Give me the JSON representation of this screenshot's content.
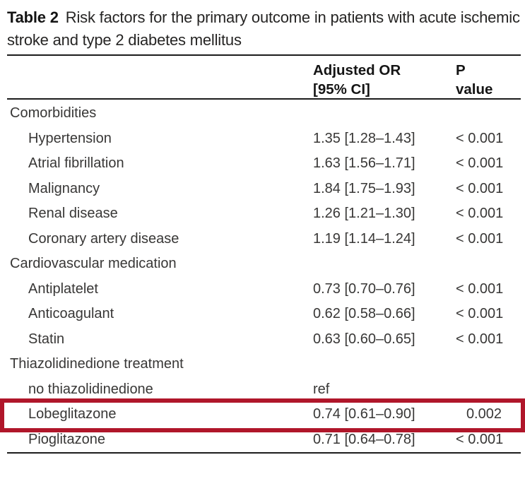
{
  "title": {
    "label": "Table 2",
    "caption": "Risk factors for the primary outcome in patients with acute ischemic stroke and type 2 diabetes mellitus"
  },
  "columns": {
    "or_line1": "Adjusted OR",
    "or_line2": "[95% CI]",
    "p_line1": "P",
    "p_line2": "value"
  },
  "rows": [
    {
      "label": "Comorbidities",
      "type": "section",
      "or": "",
      "p": "",
      "highlighted": false
    },
    {
      "label": "Hypertension",
      "type": "item",
      "or": "1.35 [1.28–1.43]",
      "p": "< 0.001",
      "highlighted": false
    },
    {
      "label": "Atrial fibrillation",
      "type": "item",
      "or": "1.63 [1.56–1.71]",
      "p": "< 0.001",
      "highlighted": false
    },
    {
      "label": "Malignancy",
      "type": "item",
      "or": "1.84 [1.75–1.93]",
      "p": "< 0.001",
      "highlighted": false
    },
    {
      "label": "Renal disease",
      "type": "item",
      "or": "1.26 [1.21–1.30]",
      "p": "< 0.001",
      "highlighted": false
    },
    {
      "label": "Coronary artery disease",
      "type": "item",
      "or": "1.19 [1.14–1.24]",
      "p": "< 0.001",
      "highlighted": false
    },
    {
      "label": "Cardiovascular medication",
      "type": "section",
      "or": "",
      "p": "",
      "highlighted": false
    },
    {
      "label": "Antiplatelet",
      "type": "item",
      "or": "0.73 [0.70–0.76]",
      "p": "< 0.001",
      "highlighted": false
    },
    {
      "label": "Anticoagulant",
      "type": "item",
      "or": "0.62 [0.58–0.66]",
      "p": "< 0.001",
      "highlighted": false
    },
    {
      "label": "Statin",
      "type": "item",
      "or": "0.63 [0.60–0.65]",
      "p": "< 0.001",
      "highlighted": false
    },
    {
      "label": "Thiazolidinedione treatment",
      "type": "section",
      "or": "",
      "p": "",
      "highlighted": false
    },
    {
      "label": "no thiazolidinedione",
      "type": "item",
      "or": "ref",
      "p": "",
      "highlighted": false
    },
    {
      "label": "Lobeglitazone",
      "type": "item",
      "or": "0.74 [0.61–0.90]",
      "p": "0.002",
      "highlighted": true
    },
    {
      "label": "Pioglitazone",
      "type": "item",
      "or": "0.71 [0.64–0.78]",
      "p": "< 0.001",
      "highlighted": false
    }
  ],
  "highlight": {
    "target_row": "Lobeglitazone",
    "color": "#b0162a"
  }
}
